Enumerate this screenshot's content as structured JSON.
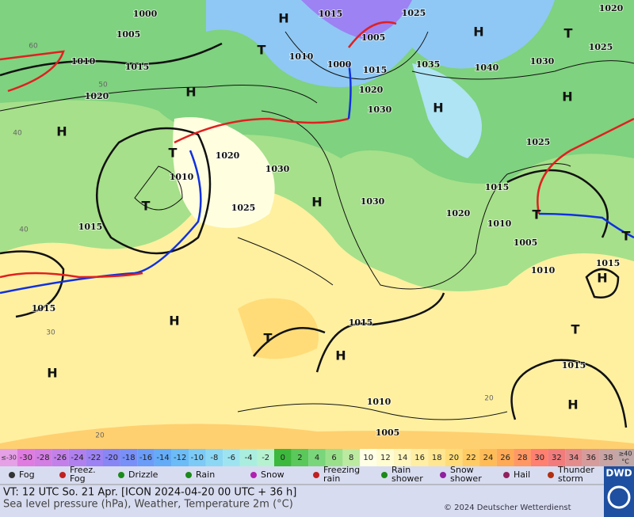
{
  "map": {
    "labels": [
      "1000",
      "1005",
      "1010",
      "1015",
      "1020",
      "1015",
      "1025",
      "1020",
      "1005",
      "1010",
      "1000",
      "1015",
      "1035",
      "1040",
      "1030",
      "1025",
      "1020",
      "1030",
      "1025",
      "1020",
      "1030",
      "1010",
      "1025",
      "1030",
      "1015",
      "1020",
      "1010",
      "1005",
      "1015",
      "1010",
      "1015",
      "1015",
      "1015",
      "1015",
      "1010",
      "1005",
      "H",
      "H",
      "T",
      "T",
      "H",
      "H",
      "H",
      "H",
      "T",
      "T",
      "H",
      "H",
      "H",
      "T",
      "H",
      "T",
      "H",
      "H",
      "T",
      "T",
      "60",
      "50",
      "40",
      "40",
      "30",
      "20",
      "20"
    ]
  },
  "scale": {
    "min_label": "≤-30",
    "max_label": [
      "≥40",
      "°C"
    ],
    "values": [
      -30,
      -28,
      -26,
      -24,
      -22,
      -20,
      -18,
      -16,
      -14,
      -12,
      -10,
      -8,
      -6,
      -4,
      -2,
      0,
      2,
      4,
      6,
      8,
      10,
      12,
      14,
      16,
      18,
      20,
      22,
      24,
      26,
      28,
      30,
      32,
      34,
      36,
      38
    ],
    "colors": [
      "#e07ce0",
      "#d27ee2",
      "#c280e8",
      "#b080ee",
      "#9c82f2",
      "#8886f4",
      "#7890f8",
      "#6a9cf8",
      "#64acf8",
      "#6cbcf8",
      "#7ccaf6",
      "#8cd8f4",
      "#9ee4f0",
      "#aaeee0",
      "#b6f2d0",
      "#3cb83c",
      "#5ac85a",
      "#7ad67a",
      "#9ae08a",
      "#bceaa0",
      "#ffffe6",
      "#fffcd2",
      "#fff6bc",
      "#ffeea4",
      "#ffe690",
      "#ffdc78",
      "#ffcc64",
      "#ffbc56",
      "#ffaa56",
      "#ff9864",
      "#ff8070",
      "#f27c7c",
      "#e48c8c",
      "#d69c9c",
      "#c8a4a4"
    ],
    "edge_colors": [
      "#e6a0e6",
      "#c0a8a8"
    ]
  },
  "legend": [
    [
      "Fog"
    ],
    [
      "Freez.",
      "Fog"
    ],
    [
      "Drizzle"
    ],
    [
      "Rain"
    ],
    [
      "Snow"
    ],
    [
      "Freezing",
      "rain"
    ],
    [
      "Rain",
      "shower"
    ],
    [
      "Snow",
      "shower"
    ],
    [
      "Hail"
    ],
    [
      "Thunder",
      "storm"
    ]
  ],
  "footer": {
    "valid_time": "VT: 12 UTC So.  21 Apr. [ICON 2024-04-20  00 UTC + 36 h]",
    "description": "Sea level pressure (hPa), Weather, Temperature 2m (°C)",
    "copyright": "© 2024 Deutscher Wetterdienst",
    "logo": "DWD"
  }
}
